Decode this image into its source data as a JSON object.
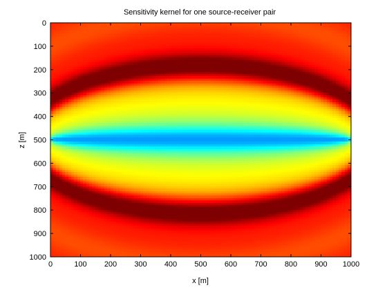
{
  "chart_data": {
    "type": "heatmap",
    "title": "Sensitivity kernel for one source-receiver pair",
    "xlabel": "x [m]",
    "ylabel": "z [m]",
    "xlim": [
      0,
      1000
    ],
    "ylim": [
      0,
      1000
    ],
    "y_inverted": true,
    "x_ticks": [
      "0",
      "100",
      "200",
      "300",
      "400",
      "500",
      "600",
      "700",
      "800",
      "900",
      "1000"
    ],
    "y_ticks": [
      "0",
      "100",
      "200",
      "300",
      "400",
      "500",
      "600",
      "700",
      "800",
      "900",
      "1000"
    ],
    "x_tick_values": [
      0,
      100,
      200,
      300,
      400,
      500,
      600,
      700,
      800,
      900,
      1000
    ],
    "y_tick_values": [
      0,
      100,
      200,
      300,
      400,
      500,
      600,
      700,
      800,
      900,
      1000
    ],
    "colormap": "jet",
    "source": {
      "x": 0,
      "z": 500
    },
    "receiver": {
      "x": 1000,
      "z": 500
    },
    "grid": false,
    "legend": "none",
    "colors": {
      "background_red": "#ff3d00",
      "dark_band": "#a00000",
      "center_yellow": "#ffe000",
      "edge_blue": "#0000c8"
    }
  }
}
